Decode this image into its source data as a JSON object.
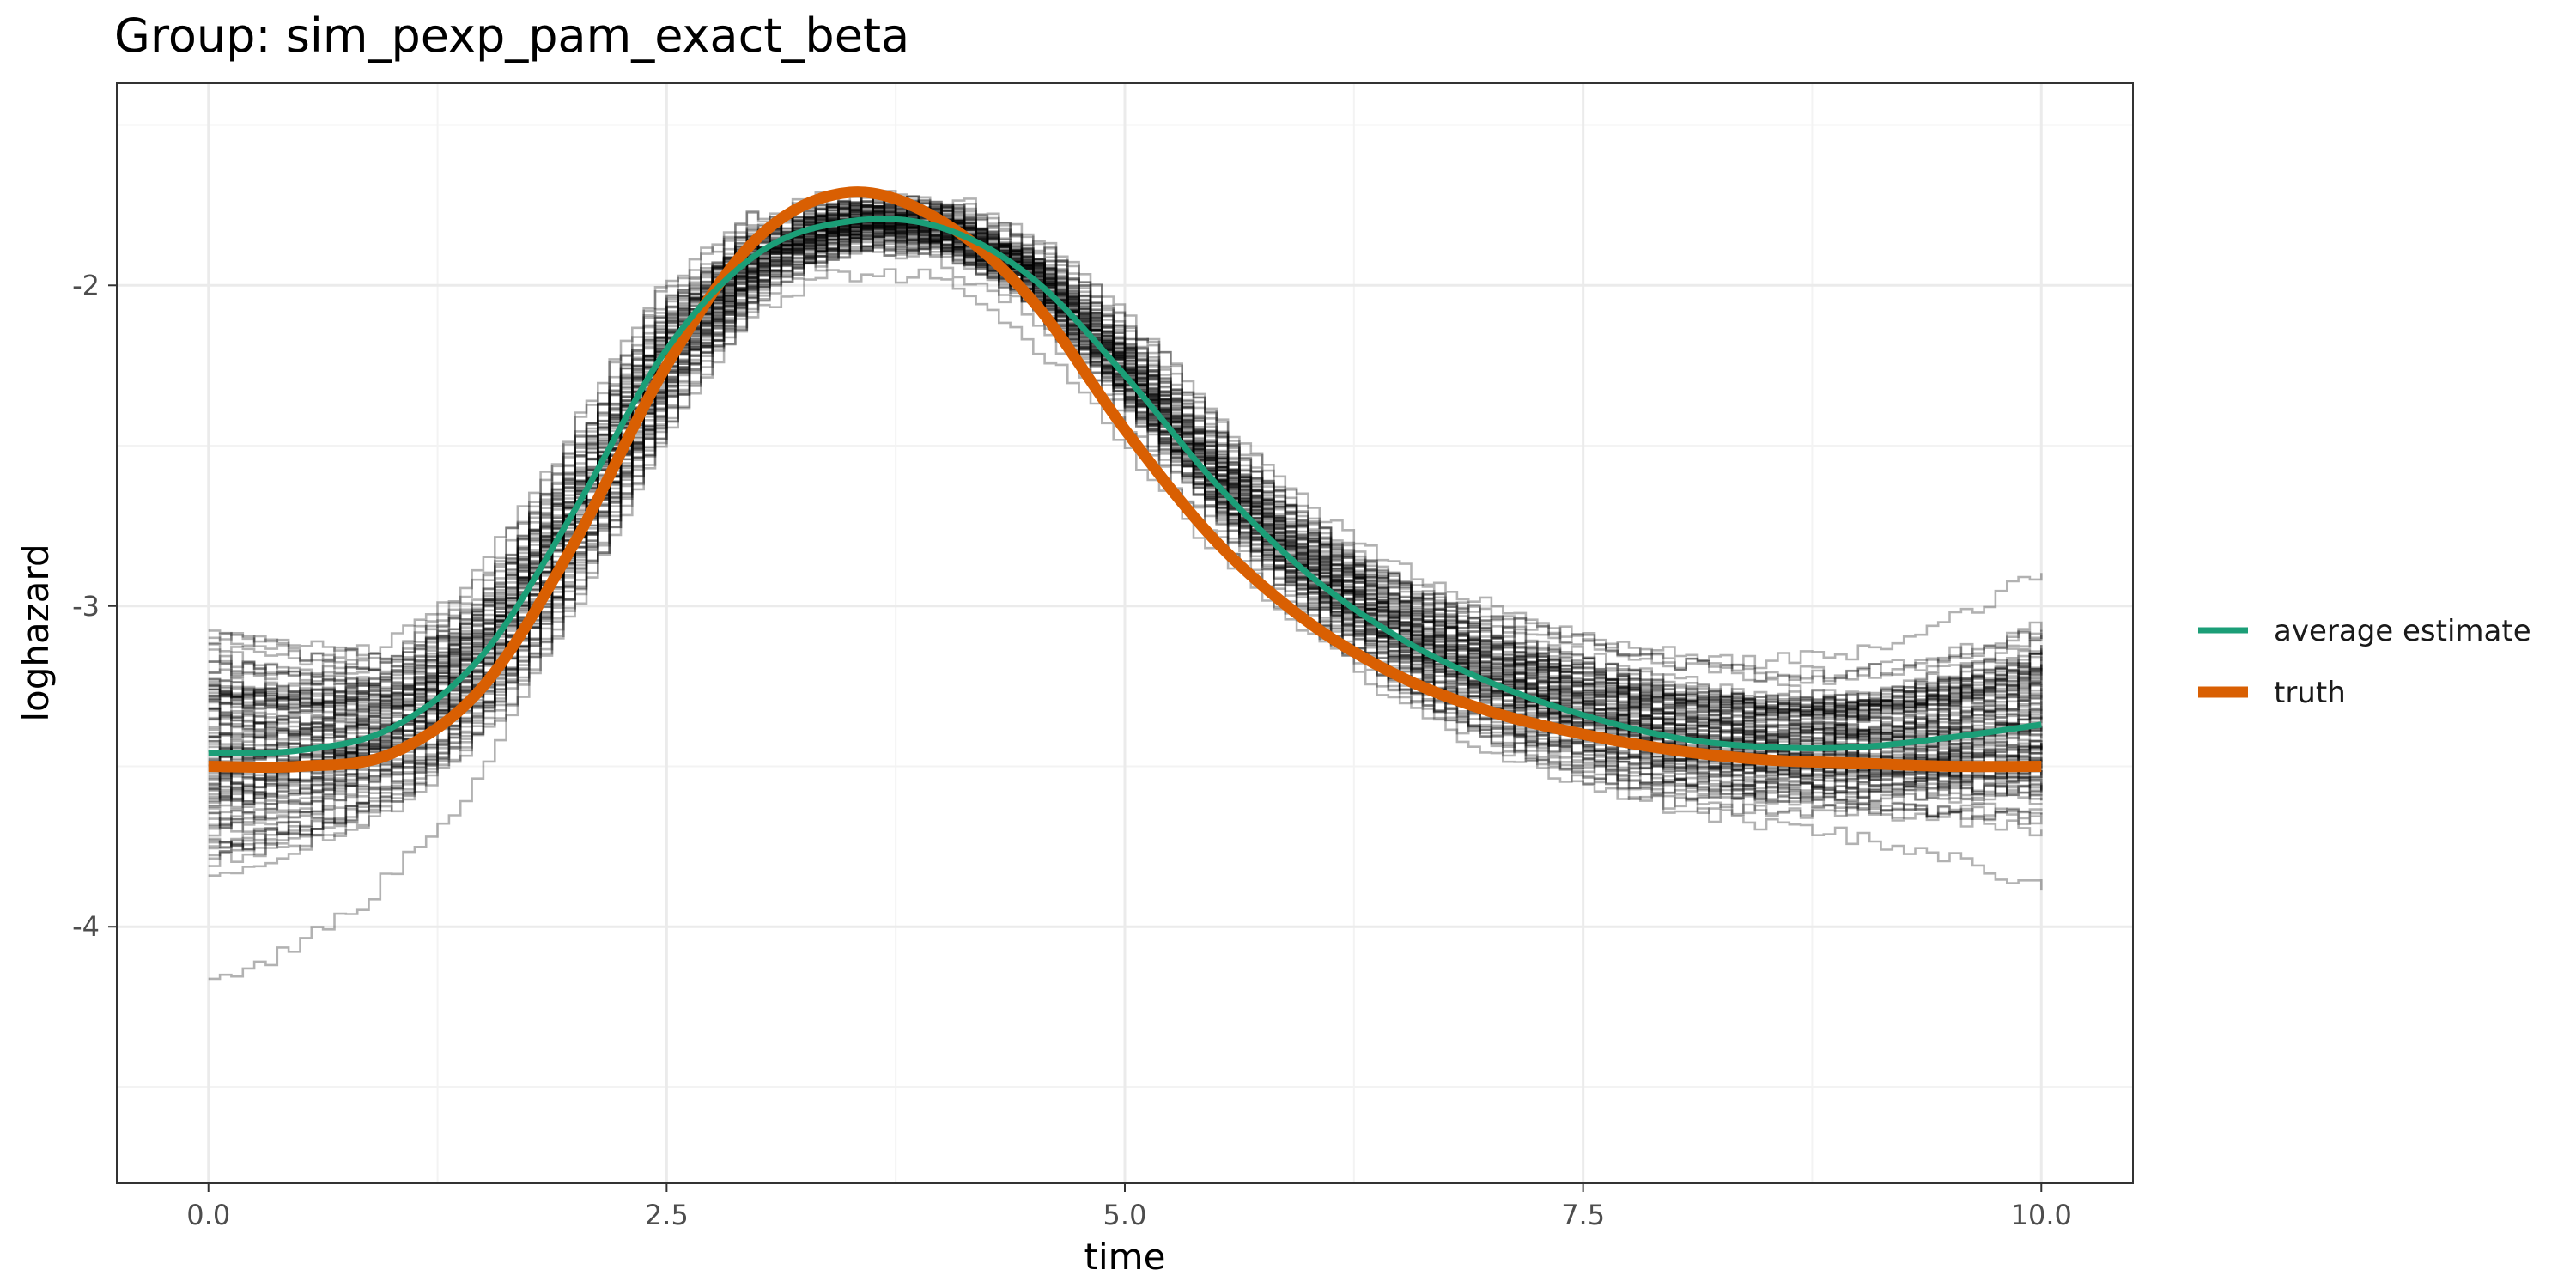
{
  "chart_data": {
    "type": "line",
    "title": "Group: sim_pexp_pam_exact_beta",
    "xlabel": "time",
    "ylabel": "loghazard",
    "xlim": [
      -0.5,
      10.5
    ],
    "ylim": [
      -4.8,
      -1.37
    ],
    "x_ticks": [
      0.0,
      2.5,
      5.0,
      7.5,
      10.0
    ],
    "x_tick_labels": [
      "0.0",
      "2.5",
      "5.0",
      "7.5",
      "10.0"
    ],
    "y_ticks": [
      -4,
      -3,
      -2
    ],
    "y_tick_labels": [
      "-4",
      "-3",
      "-2"
    ],
    "grid": true,
    "legend_position": "right",
    "colors": {
      "average_estimate": "#1b9e77",
      "truth": "#d95f02",
      "replicates": "#000000",
      "panel_border": "#333333",
      "grid_major": "#ebebeb"
    },
    "x": [
      0,
      0.5,
      1,
      1.5,
      2,
      2.5,
      3,
      3.5,
      4,
      4.5,
      5,
      5.5,
      6,
      6.5,
      7,
      7.5,
      8,
      8.5,
      9,
      9.5,
      10
    ],
    "series": [
      {
        "name": "average estimate",
        "values": [
          -3.46,
          -3.45,
          -3.38,
          -3.15,
          -2.7,
          -2.2,
          -1.9,
          -1.8,
          -1.82,
          -1.98,
          -2.28,
          -2.62,
          -2.9,
          -3.1,
          -3.24,
          -3.34,
          -3.41,
          -3.44,
          -3.44,
          -3.41,
          -3.37
        ]
      },
      {
        "name": "truth",
        "values": [
          -3.5,
          -3.5,
          -3.46,
          -3.25,
          -2.8,
          -2.25,
          -1.85,
          -1.71,
          -1.8,
          -2.05,
          -2.45,
          -2.8,
          -3.05,
          -3.22,
          -3.33,
          -3.4,
          -3.45,
          -3.48,
          -3.49,
          -3.5,
          -3.5
        ]
      }
    ],
    "replicate_band": {
      "description_count": 100,
      "x": [
        0,
        0.5,
        1,
        1.5,
        2,
        2.5,
        3,
        3.5,
        4,
        4.5,
        5,
        5.5,
        6,
        6.5,
        7,
        7.5,
        8,
        8.5,
        9,
        9.5,
        10
      ],
      "spread": [
        0.55,
        0.45,
        0.35,
        0.3,
        0.28,
        0.22,
        0.14,
        0.13,
        0.13,
        0.14,
        0.17,
        0.2,
        0.22,
        0.24,
        0.26,
        0.26,
        0.26,
        0.26,
        0.28,
        0.35,
        0.45
      ]
    },
    "legend": [
      {
        "label": "average estimate",
        "color": "#1b9e77"
      },
      {
        "label": "truth",
        "color": "#d95f02"
      }
    ]
  }
}
